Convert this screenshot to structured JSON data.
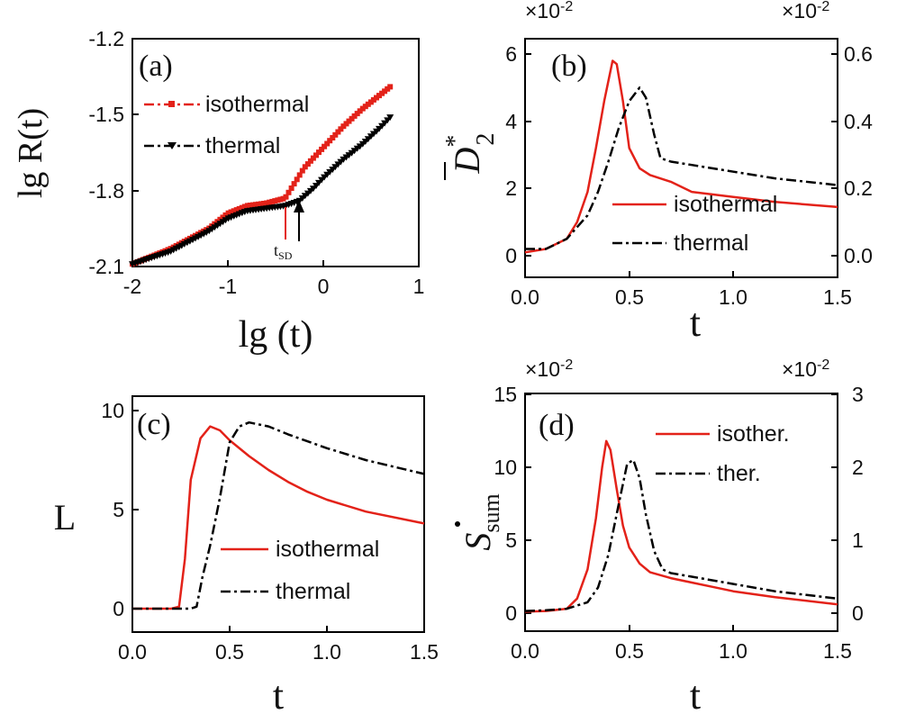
{
  "colors": {
    "isothermal": "#e32219",
    "thermal": "#000000"
  },
  "chart_data": [
    {
      "id": "a",
      "type": "scatter",
      "panel_label": "(a)",
      "xlabel": "lg (t)",
      "ylabel": "lg R(t)",
      "xlim": [
        -2,
        1
      ],
      "ylim": [
        -2.1,
        -1.2
      ],
      "xticks": [
        "-2",
        "-1",
        "0",
        "1"
      ],
      "yticks": [
        "-2.1",
        "-1.8",
        "-1.5",
        "-1.2"
      ],
      "legend": [
        "isothermal",
        "thermal"
      ],
      "legend_position": "top-left",
      "annotation": {
        "text": "t",
        "subscript": "SD"
      },
      "series": [
        {
          "name": "isothermal",
          "color": "#e32219",
          "x": [
            -2.0,
            -1.6,
            -1.2,
            -1.0,
            -0.8,
            -0.6,
            -0.4,
            -0.3,
            -0.2,
            0.0,
            0.2,
            0.4,
            0.6,
            0.7
          ],
          "y": [
            -2.09,
            -2.03,
            -1.95,
            -1.89,
            -1.86,
            -1.85,
            -1.83,
            -1.77,
            -1.71,
            -1.63,
            -1.55,
            -1.48,
            -1.42,
            -1.39
          ]
        },
        {
          "name": "thermal",
          "color": "#000000",
          "x": [
            -2.0,
            -1.6,
            -1.2,
            -1.0,
            -0.8,
            -0.6,
            -0.4,
            -0.25,
            -0.1,
            0.0,
            0.2,
            0.4,
            0.6,
            0.7
          ],
          "y": [
            -2.09,
            -2.04,
            -1.96,
            -1.91,
            -1.88,
            -1.87,
            -1.86,
            -1.84,
            -1.79,
            -1.75,
            -1.68,
            -1.62,
            -1.55,
            -1.51
          ]
        }
      ]
    },
    {
      "id": "b",
      "type": "line",
      "panel_label": "(b)",
      "xlabel": "t",
      "ylabel": "D",
      "ylabel_superscript": "*",
      "ylabel_subscript": "2",
      "xlim": [
        0,
        1.5
      ],
      "ylim": [
        0,
        6
      ],
      "y2lim": [
        0,
        0.6
      ],
      "xticks": [
        "0.0",
        "0.5",
        "1.0",
        "1.5"
      ],
      "yticks": [
        "0",
        "2",
        "4",
        "6"
      ],
      "y2ticks": [
        "0.0",
        "0.2",
        "0.4",
        "0.6"
      ],
      "y_multiplier": "×10",
      "y_multiplier_exp": "-2",
      "y2_multiplier": "×10",
      "y2_multiplier_exp": "-2",
      "legend": [
        "isothermal",
        "thermal"
      ],
      "legend_position": "bottom-right",
      "series": [
        {
          "name": "isothermal",
          "axis": "left",
          "color": "#e32219",
          "x": [
            0,
            0.1,
            0.2,
            0.25,
            0.3,
            0.34,
            0.38,
            0.42,
            0.44,
            0.47,
            0.5,
            0.55,
            0.6,
            0.7,
            0.8,
            1.0,
            1.2,
            1.5
          ],
          "y": [
            0.1,
            0.2,
            0.5,
            1.0,
            1.9,
            3.2,
            4.6,
            5.8,
            5.7,
            4.6,
            3.2,
            2.6,
            2.4,
            2.2,
            1.9,
            1.75,
            1.6,
            1.45
          ]
        },
        {
          "name": "thermal",
          "axis": "right",
          "color": "#000000",
          "x": [
            0,
            0.1,
            0.2,
            0.3,
            0.35,
            0.4,
            0.45,
            0.5,
            0.55,
            0.58,
            0.62,
            0.65,
            0.7,
            0.8,
            1.0,
            1.2,
            1.5
          ],
          "y": [
            0.02,
            0.02,
            0.05,
            0.12,
            0.19,
            0.28,
            0.38,
            0.46,
            0.5,
            0.47,
            0.36,
            0.29,
            0.28,
            0.27,
            0.25,
            0.23,
            0.21
          ]
        }
      ]
    },
    {
      "id": "c",
      "type": "line",
      "panel_label": "(c)",
      "xlabel": "t",
      "ylabel": "L",
      "xlim": [
        0,
        1.5
      ],
      "ylim": [
        0,
        10
      ],
      "xticks": [
        "0.0",
        "0.5",
        "1.0",
        "1.5"
      ],
      "yticks": [
        "0",
        "5",
        "10"
      ],
      "legend": [
        "isothermal",
        "thermal"
      ],
      "legend_position": "bottom-right",
      "series": [
        {
          "name": "isothermal",
          "color": "#e32219",
          "x": [
            0,
            0.2,
            0.24,
            0.27,
            0.3,
            0.35,
            0.4,
            0.45,
            0.5,
            0.6,
            0.7,
            0.8,
            0.9,
            1.0,
            1.2,
            1.5
          ],
          "y": [
            0,
            0,
            0.1,
            2.5,
            6.5,
            8.6,
            9.2,
            9.0,
            8.5,
            7.7,
            7.0,
            6.4,
            5.9,
            5.5,
            4.9,
            4.3
          ]
        },
        {
          "name": "thermal",
          "color": "#000000",
          "x": [
            0,
            0.3,
            0.33,
            0.36,
            0.4,
            0.45,
            0.5,
            0.55,
            0.6,
            0.7,
            0.8,
            1.0,
            1.2,
            1.5
          ],
          "y": [
            0,
            0,
            0.1,
            1.6,
            3.2,
            5.6,
            8.4,
            9.2,
            9.4,
            9.2,
            8.8,
            8.1,
            7.5,
            6.8
          ]
        }
      ]
    },
    {
      "id": "d",
      "type": "line",
      "panel_label": "(d)",
      "xlabel": "t",
      "ylabel": "S",
      "ylabel_subscript": "sum",
      "xlim": [
        0,
        1.5
      ],
      "ylim": [
        0,
        15
      ],
      "y2lim": [
        0,
        3
      ],
      "xticks": [
        "0.0",
        "0.5",
        "1.0",
        "1.5"
      ],
      "yticks": [
        "0",
        "5",
        "10",
        "15"
      ],
      "y2ticks": [
        "0",
        "1",
        "2",
        "3"
      ],
      "y_multiplier": "×10",
      "y_multiplier_exp": "-2",
      "y2_multiplier": "×10",
      "y2_multiplier_exp": "-2",
      "legend": [
        "isother.",
        "ther."
      ],
      "legend_position": "top-right",
      "series": [
        {
          "name": "isother.",
          "axis": "left",
          "color": "#e32219",
          "x": [
            0,
            0.1,
            0.2,
            0.25,
            0.3,
            0.34,
            0.37,
            0.39,
            0.41,
            0.44,
            0.47,
            0.5,
            0.55,
            0.6,
            0.7,
            0.8,
            0.9,
            1.0,
            1.2,
            1.5
          ],
          "y": [
            0.1,
            0.15,
            0.3,
            1.0,
            3.0,
            6.5,
            10.0,
            11.8,
            11.2,
            8.5,
            6.0,
            4.5,
            3.4,
            2.8,
            2.4,
            2.1,
            1.8,
            1.5,
            1.1,
            0.6
          ]
        },
        {
          "name": "ther.",
          "axis": "right",
          "color": "#000000",
          "x": [
            0,
            0.1,
            0.2,
            0.3,
            0.35,
            0.4,
            0.45,
            0.49,
            0.52,
            0.55,
            0.58,
            0.62,
            0.66,
            0.7,
            0.8,
            1.0,
            1.2,
            1.5
          ],
          "y": [
            0.03,
            0.04,
            0.06,
            0.15,
            0.35,
            0.8,
            1.5,
            2.05,
            2.1,
            1.85,
            1.35,
            0.85,
            0.6,
            0.55,
            0.5,
            0.4,
            0.3,
            0.2
          ]
        }
      ]
    }
  ]
}
